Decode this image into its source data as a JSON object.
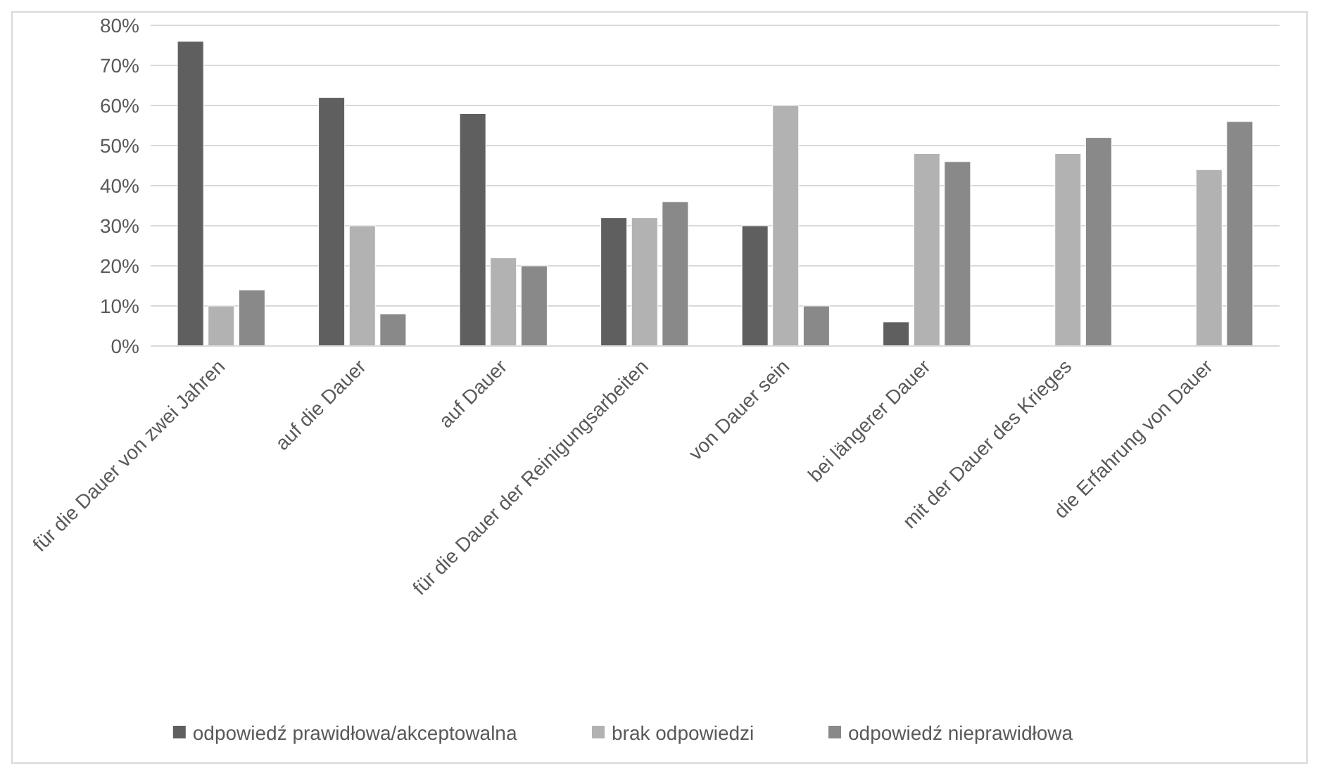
{
  "chart_data": {
    "type": "bar",
    "categories": [
      "für die Dauer von zwei Jahren",
      "auf die Dauer",
      "auf Dauer",
      "für die Dauer der Reinigungsarbeiten",
      "von Dauer sein",
      "bei längerer Dauer",
      "mit der Dauer des Krieges",
      "die Erfahrung von Dauer"
    ],
    "series": [
      {
        "name": "odpowiedź prawidłowa/akceptowalna",
        "color": "#5f5f5f",
        "values": [
          76,
          62,
          58,
          32,
          30,
          6,
          0,
          0
        ]
      },
      {
        "name": "brak odpowiedzi",
        "color": "#b2b2b2",
        "values": [
          10,
          30,
          22,
          32,
          60,
          48,
          48,
          44
        ]
      },
      {
        "name": "odpowiedź nieprawidłowa",
        "color": "#898989",
        "values": [
          14,
          8,
          20,
          36,
          10,
          46,
          52,
          56
        ]
      }
    ],
    "ylim": [
      0,
      80
    ],
    "yticks": [
      {
        "value": 0,
        "label": "0%"
      },
      {
        "value": 10,
        "label": "10%"
      },
      {
        "value": 20,
        "label": "20%"
      },
      {
        "value": 30,
        "label": "30%"
      },
      {
        "value": 40,
        "label": "40%"
      },
      {
        "value": 50,
        "label": "50%"
      },
      {
        "value": 60,
        "label": "60%"
      },
      {
        "value": 70,
        "label": "70%"
      },
      {
        "value": 80,
        "label": "80%"
      }
    ],
    "grid": "y",
    "legend": "bottom"
  }
}
